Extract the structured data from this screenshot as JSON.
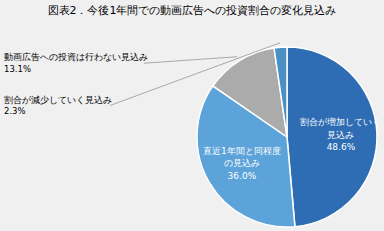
{
  "chart_data": {
    "type": "pie",
    "title": "図表2．今後1年間での動画広告への投資割合の変化見込み",
    "categories": [
      "割合が増加していく\n見込み",
      "直近1年間と同程度\nの見込み",
      "動画広告への投資は行わない見込み",
      "割合が減少していく見込み"
    ],
    "values": [
      48.6,
      36.0,
      13.1,
      2.3
    ],
    "value_labels": [
      "48.6%",
      "36.0%",
      "13.1%",
      "2.3%"
    ],
    "colors": [
      "#2E6DB4",
      "#5BA3D9",
      "#ABABAB",
      "#4A90C4"
    ]
  }
}
